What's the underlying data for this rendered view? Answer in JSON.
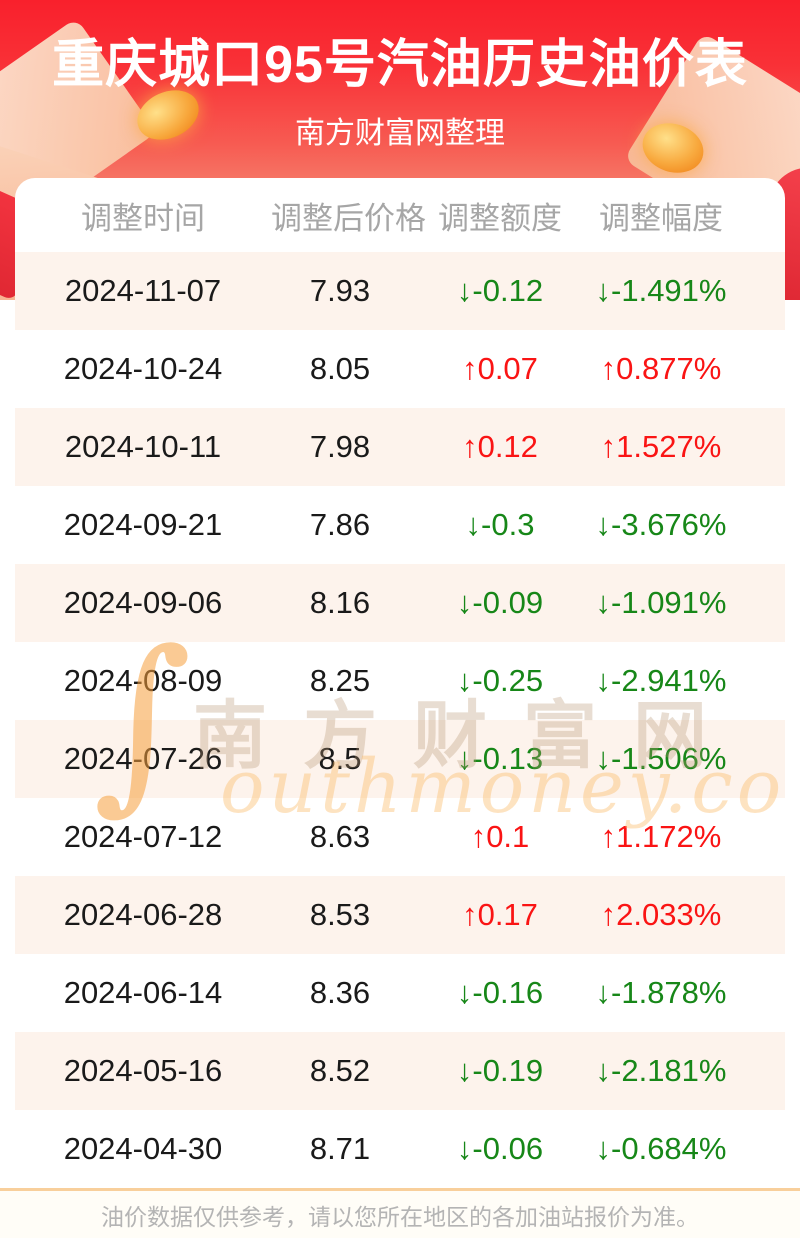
{
  "header": {
    "title": "重庆城口95号汽油历史油价表",
    "subtitle": "南方财富网整理"
  },
  "chart_data": {
    "type": "table",
    "title": "重庆城口95号汽油历史油价表",
    "columns": [
      "调整时间",
      "调整后价格",
      "调整额度",
      "调整幅度"
    ],
    "rows": [
      {
        "date": "2024-11-07",
        "price": 7.93,
        "change": "↓-0.12",
        "percent": "↓-1.491%",
        "direction": "down"
      },
      {
        "date": "2024-10-24",
        "price": 8.05,
        "change": "↑0.07",
        "percent": "↑0.877%",
        "direction": "up"
      },
      {
        "date": "2024-10-11",
        "price": 7.98,
        "change": "↑0.12",
        "percent": "↑1.527%",
        "direction": "up"
      },
      {
        "date": "2024-09-21",
        "price": 7.86,
        "change": "↓-0.3",
        "percent": "↓-3.676%",
        "direction": "down"
      },
      {
        "date": "2024-09-06",
        "price": 8.16,
        "change": "↓-0.09",
        "percent": "↓-1.091%",
        "direction": "down"
      },
      {
        "date": "2024-08-09",
        "price": 8.25,
        "change": "↓-0.25",
        "percent": "↓-2.941%",
        "direction": "down"
      },
      {
        "date": "2024-07-26",
        "price": 8.5,
        "change": "↓-0.13",
        "percent": "↓-1.506%",
        "direction": "down"
      },
      {
        "date": "2024-07-12",
        "price": 8.63,
        "change": "↑0.1",
        "percent": "↑1.172%",
        "direction": "up"
      },
      {
        "date": "2024-06-28",
        "price": 8.53,
        "change": "↑0.17",
        "percent": "↑2.033%",
        "direction": "up"
      },
      {
        "date": "2024-06-14",
        "price": 8.36,
        "change": "↓-0.16",
        "percent": "↓-1.878%",
        "direction": "down"
      },
      {
        "date": "2024-05-16",
        "price": 8.52,
        "change": "↓-0.19",
        "percent": "↓-2.181%",
        "direction": "down"
      },
      {
        "date": "2024-04-30",
        "price": 8.71,
        "change": "↓-0.06",
        "percent": "↓-0.684%",
        "direction": "down"
      }
    ]
  },
  "watermark": {
    "cn": "南方财富网",
    "en": "outhmoney.com",
    "flourish": "∫"
  },
  "footer": {
    "note": "油价数据仅供参考，请以您所在地区的各加油站报价为准。"
  },
  "colors": {
    "up": "#fa1414",
    "down": "#178718",
    "banner_red": "#f9242e",
    "row_alt": "#fdf3ec",
    "header_text": "#a6a6a6",
    "divider": "#f8cf9b",
    "footer_bg": "#fffdf7",
    "footer_text": "#b4b4b4"
  }
}
